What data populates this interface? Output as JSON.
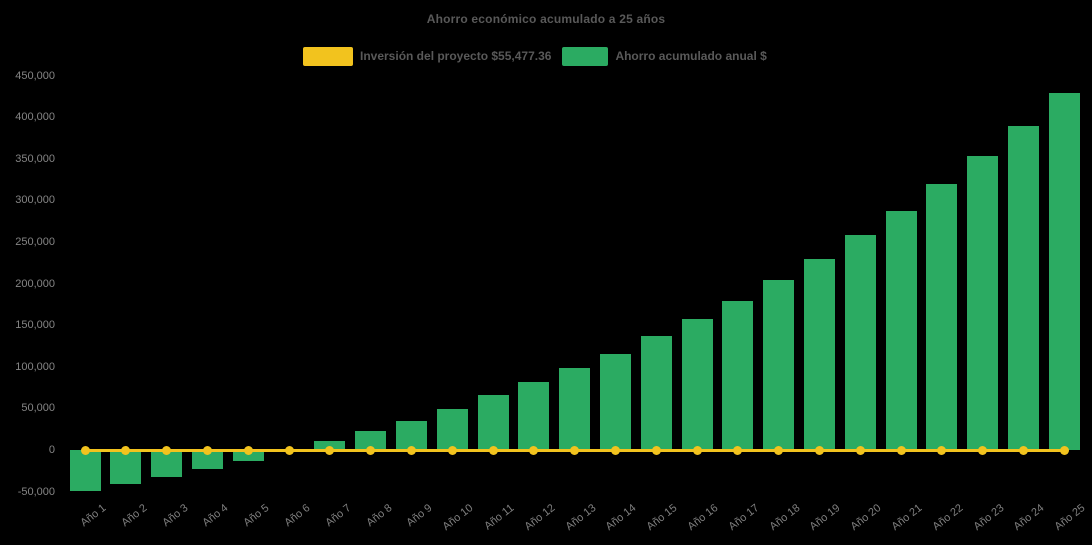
{
  "chart_data": {
    "type": "bar",
    "title": "Ahorro económico acumulado a 25 años",
    "categories": [
      "Año 1",
      "Año 2",
      "Año 3",
      "Año 4",
      "Año 5",
      "Año 6",
      "Año 7",
      "Año 8",
      "Año 9",
      "Año 10",
      "Año 11",
      "Año 12",
      "Año 13",
      "Año 14",
      "Año 15",
      "Año 16",
      "Año 17",
      "Año 18",
      "Año 19",
      "Año 20",
      "Año 21",
      "Año 22",
      "Año 23",
      "Año 24",
      "Año 25"
    ],
    "series": [
      {
        "name": "Inversión del proyecto $55,477.36",
        "type": "line",
        "color": "#F2C31E",
        "marker": "circle",
        "values": [
          0,
          0,
          0,
          0,
          0,
          0,
          0,
          0,
          0,
          0,
          0,
          0,
          0,
          0,
          0,
          0,
          0,
          0,
          0,
          0,
          0,
          0,
          0,
          0,
          0
        ]
      },
      {
        "name": "Ahorro acumulado anual $",
        "type": "bar",
        "color": "#2BAB62",
        "values": [
          -48900,
          -40900,
          -32500,
          -22800,
          -13200,
          -2600,
          11300,
          23200,
          35200,
          49600,
          65700,
          81700,
          98600,
          115400,
          137000,
          157500,
          179400,
          204300,
          229600,
          258400,
          287300,
          319700,
          353400,
          389400,
          429100
        ]
      }
    ],
    "xlabel": "",
    "ylabel": "",
    "ylim": [
      -50000,
      450000
    ],
    "ytick_step": 50000,
    "grid": false,
    "legend_position": "top-center",
    "background_color": "#000000",
    "text_colors": {
      "title": "#595959",
      "axis": "#858585"
    }
  }
}
